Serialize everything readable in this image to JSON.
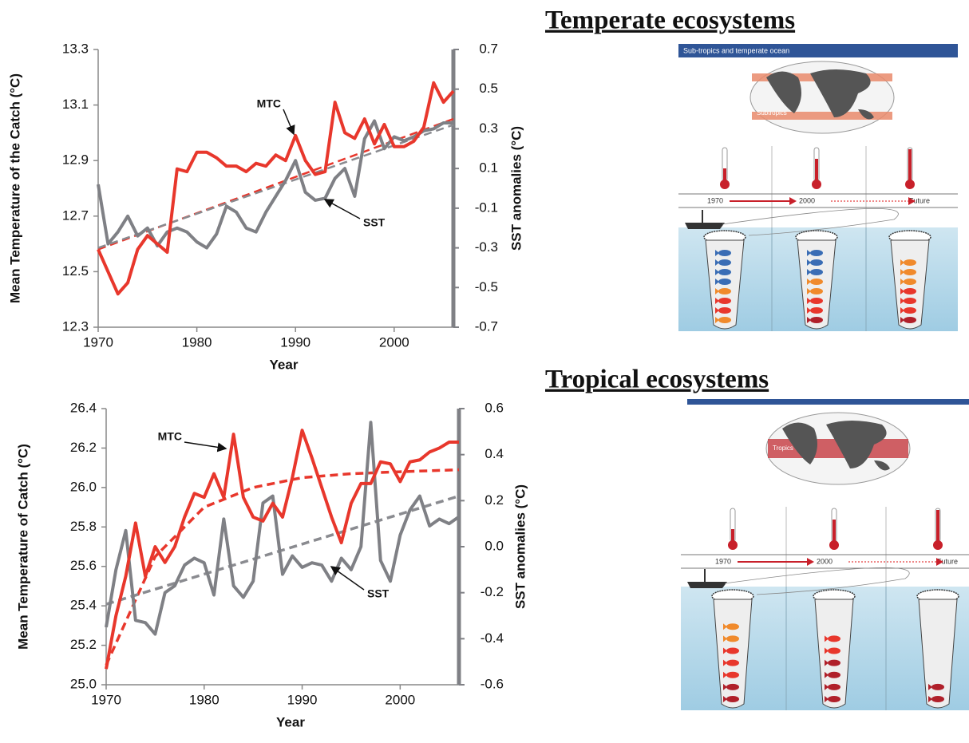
{
  "chart_data": [
    {
      "type": "line",
      "x_label": "Year",
      "y_label": "Mean Temperature of the Catch (°C)",
      "y2_label": "SST anomalies  (°C)",
      "xlim": [
        1970,
        2006
      ],
      "xticks": [
        1970,
        1980,
        1990,
        2000
      ],
      "ylim": [
        12.3,
        13.3
      ],
      "yticks": [
        12.3,
        12.5,
        12.7,
        12.9,
        13.1,
        13.3
      ],
      "y2lim": [
        -0.7,
        0.7
      ],
      "y2ticks": [
        -0.7,
        -0.5,
        -0.3,
        -0.1,
        0.1,
        0.3,
        0.5,
        0.7
      ],
      "x": [
        1970,
        1971,
        1972,
        1973,
        1974,
        1975,
        1976,
        1977,
        1978,
        1979,
        1980,
        1981,
        1982,
        1983,
        1984,
        1985,
        1986,
        1987,
        1988,
        1989,
        1990,
        1991,
        1992,
        1993,
        1994,
        1995,
        1996,
        1997,
        1998,
        1999,
        2000,
        2001,
        2002,
        2003,
        2004,
        2005,
        2006
      ],
      "series": [
        {
          "name": "MTC",
          "color": "#e8372c",
          "axis": "y",
          "values": [
            12.58,
            12.5,
            12.42,
            12.46,
            12.58,
            12.63,
            12.6,
            12.57,
            12.87,
            12.86,
            12.93,
            12.93,
            12.91,
            12.88,
            12.88,
            12.86,
            12.89,
            12.88,
            12.92,
            12.9,
            12.99,
            12.9,
            12.85,
            12.86,
            13.11,
            13.0,
            12.98,
            13.05,
            12.96,
            13.03,
            12.95,
            12.95,
            12.97,
            13.02,
            13.18,
            13.11,
            13.15
          ]
        },
        {
          "name": "SST",
          "color": "#7f8085",
          "axis": "y2",
          "values": [
            0.02,
            -0.28,
            -0.22,
            -0.14,
            -0.24,
            -0.2,
            -0.29,
            -0.22,
            -0.2,
            -0.22,
            -0.27,
            -0.3,
            -0.23,
            -0.09,
            -0.12,
            -0.2,
            -0.22,
            -0.12,
            -0.04,
            0.04,
            0.14,
            -0.02,
            -0.06,
            -0.05,
            0.05,
            0.1,
            -0.04,
            0.25,
            0.34,
            0.2,
            0.26,
            0.24,
            0.26,
            0.29,
            0.3,
            0.33,
            0.33
          ]
        }
      ],
      "trends": [
        {
          "color": "#e8372c",
          "axis": "y",
          "x": [
            1970,
            2006
          ],
          "values": [
            12.58,
            13.05
          ]
        },
        {
          "color": "#8a8b90",
          "axis": "y2",
          "x": [
            1970,
            2006
          ],
          "values": [
            -0.3,
            0.32
          ]
        }
      ]
    },
    {
      "type": "line",
      "x_label": "Year",
      "y_label": "Mean Temperature of Catch (°C)",
      "y2_label": "SST anomalies  (°C)",
      "xlim": [
        1970,
        2006
      ],
      "xticks": [
        1970,
        1980,
        1990,
        2000
      ],
      "ylim": [
        25.0,
        26.4
      ],
      "yticks": [
        {
          "value": 25,
          "label": "25.0"
        },
        25.2,
        25.4,
        25.6,
        25.8,
        {
          "value": 26,
          "label": "26.0"
        },
        26.2,
        26.4
      ],
      "y2lim": [
        -0.6,
        0.6
      ],
      "y2ticks": [
        -0.6,
        -0.4,
        -0.2,
        {
          "value": 0,
          "label": "0.0"
        },
        0.2,
        0.4,
        0.6
      ],
      "x": [
        1970,
        1971,
        1972,
        1973,
        1974,
        1975,
        1976,
        1977,
        1978,
        1979,
        1980,
        1981,
        1982,
        1983,
        1984,
        1985,
        1986,
        1987,
        1988,
        1989,
        1990,
        1991,
        1992,
        1993,
        1994,
        1995,
        1996,
        1997,
        1998,
        1999,
        2000,
        2001,
        2002,
        2003,
        2004,
        2005,
        2006
      ],
      "series": [
        {
          "name": "MTC",
          "color": "#e8372c",
          "axis": "y",
          "values": [
            25.08,
            25.35,
            25.55,
            25.82,
            25.55,
            25.7,
            25.62,
            25.7,
            25.85,
            25.97,
            25.95,
            26.07,
            25.95,
            26.27,
            25.95,
            25.85,
            25.83,
            25.92,
            25.85,
            26.05,
            26.29,
            26.15,
            26.0,
            25.85,
            25.72,
            25.92,
            26.02,
            26.02,
            26.13,
            26.12,
            26.03,
            26.13,
            26.14,
            26.18,
            26.2,
            26.23,
            26.23
          ]
        },
        {
          "name": "SST",
          "color": "#7f8085",
          "axis": "y2",
          "values": [
            -0.35,
            -0.1,
            0.07,
            -0.32,
            -0.33,
            -0.38,
            -0.2,
            -0.17,
            -0.08,
            -0.05,
            -0.07,
            -0.21,
            0.12,
            -0.17,
            -0.22,
            -0.15,
            0.19,
            0.22,
            -0.12,
            -0.04,
            -0.09,
            -0.07,
            -0.08,
            -0.15,
            -0.05,
            -0.1,
            0.0,
            0.54,
            -0.06,
            -0.15,
            0.05,
            0.16,
            0.22,
            0.09,
            0.12,
            0.1,
            0.13
          ]
        }
      ],
      "trends": [
        {
          "color": "#e8372c",
          "axis": "y",
          "x": [
            1970,
            1975,
            1980,
            1985,
            1990,
            1995,
            2000,
            2006
          ],
          "values": [
            25.1,
            25.65,
            25.9,
            26.0,
            26.05,
            26.07,
            26.08,
            26.09
          ]
        },
        {
          "color": "#8a8b90",
          "axis": "y2",
          "x": [
            1970,
            2006
          ],
          "values": [
            -0.25,
            0.22
          ]
        }
      ]
    }
  ],
  "illustrations": [
    {
      "heading": "Temperate ecosystems",
      "banner": "Sub-tropics and temperate ocean",
      "map_label": "Subtropics",
      "timeline": [
        "1970",
        "2000",
        "Future"
      ]
    },
    {
      "heading": "Tropical ecosystems",
      "map_label": "Tropics",
      "timeline": [
        "1970",
        "2000",
        "Future"
      ]
    }
  ]
}
